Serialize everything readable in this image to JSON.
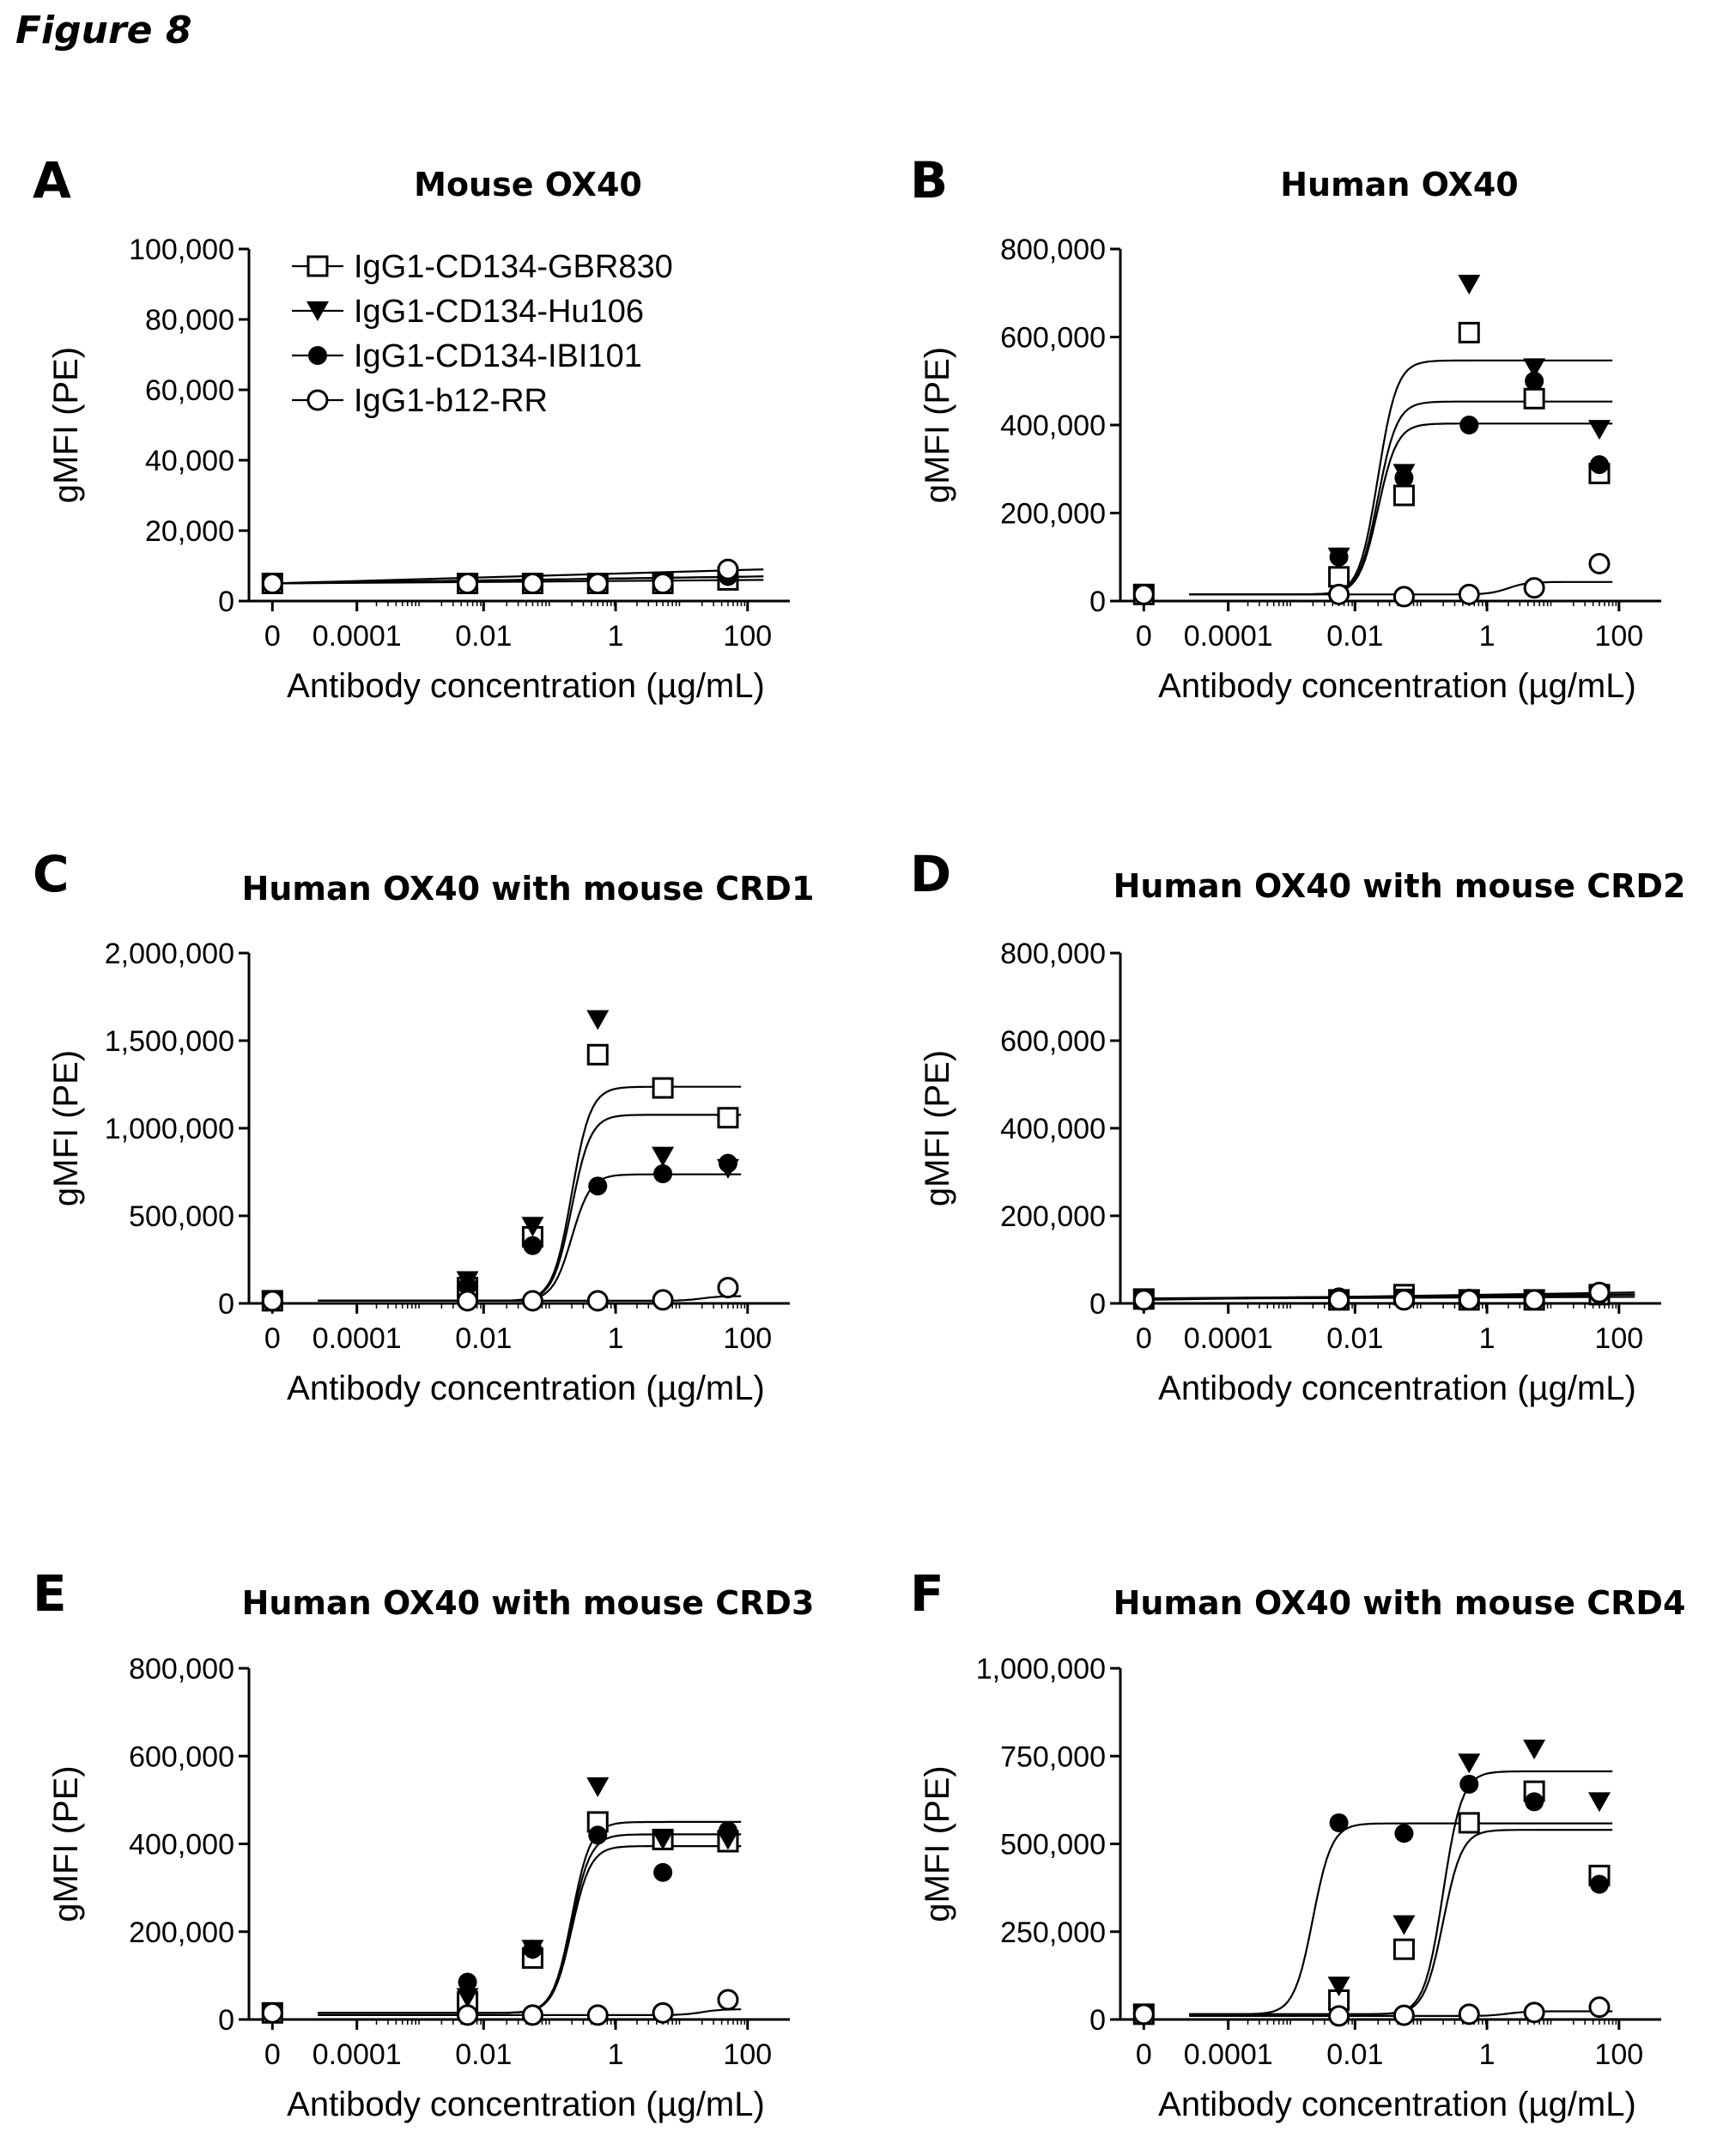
{
  "figure_label": "Figure 8",
  "legend": [
    {
      "name": "IgG1-CD134-GBR830",
      "marker": "open-square"
    },
    {
      "name": "IgG1-CD134-Hu106",
      "marker": "filled-triangle-down"
    },
    {
      "name": "IgG1-CD134-IBI101",
      "marker": "filled-circle"
    },
    {
      "name": "IgG1-b12-RR",
      "marker": "open-circle"
    }
  ],
  "colors": {
    "ink": "#000000",
    "background": "#ffffff"
  },
  "chart_data": [
    {
      "panel": "A",
      "type": "scatter",
      "title": "Mouse OX40",
      "xlabel": "Antibody concentration (µg/mL)",
      "ylabel": "gMFI (PE)",
      "xscale": "log",
      "xticks": [
        "0",
        "0.0001",
        "0.01",
        "1",
        "100"
      ],
      "yticks": [
        "0",
        "20,000",
        "40,000",
        "60,000",
        "80,000",
        "100,000"
      ],
      "ylim": [
        0,
        100000
      ],
      "x": [
        "0",
        0.005,
        0.05,
        0.5,
        5,
        50
      ],
      "series": [
        {
          "name": "IgG1-CD134-GBR830",
          "values": [
            5000,
            5000,
            5000,
            5000,
            5000,
            6000
          ],
          "fit": "flat"
        },
        {
          "name": "IgG1-CD134-Hu106",
          "values": [
            5000,
            5000,
            5000,
            5000,
            5000,
            7000
          ],
          "fit": "flat"
        },
        {
          "name": "IgG1-CD134-IBI101",
          "values": [
            5000,
            5000,
            5000,
            5000,
            5000,
            7000
          ],
          "fit": "flat"
        },
        {
          "name": "IgG1-b12-RR",
          "values": [
            5000,
            5000,
            5000,
            5000,
            5000,
            9000
          ],
          "fit": "flat"
        }
      ]
    },
    {
      "panel": "B",
      "type": "scatter",
      "title": "Human OX40",
      "xlabel": "Antibody concentration (µg/mL)",
      "ylabel": "gMFI (PE)",
      "xscale": "log",
      "xticks": [
        "0",
        "0.0001",
        "0.01",
        "1",
        "100"
      ],
      "yticks": [
        "0",
        "200,000",
        "400,000",
        "600,000",
        "800,000"
      ],
      "ylim": [
        0,
        800000
      ],
      "x": [
        "0",
        0.005,
        0.05,
        0.5,
        5,
        50
      ],
      "series": [
        {
          "name": "IgG1-CD134-GBR830",
          "values": [
            15000,
            55000,
            240000,
            610000,
            460000,
            290000
          ]
        },
        {
          "name": "IgG1-CD134-Hu106",
          "values": [
            15000,
            100000,
            290000,
            720000,
            530000,
            390000
          ]
        },
        {
          "name": "IgG1-CD134-IBI101",
          "values": [
            15000,
            100000,
            280000,
            400000,
            500000,
            310000
          ]
        },
        {
          "name": "IgG1-b12-RR",
          "values": [
            15000,
            15000,
            10000,
            15000,
            30000,
            85000
          ]
        }
      ]
    },
    {
      "panel": "C",
      "type": "scatter",
      "title": "Human OX40 with mouse CRD1",
      "xlabel": "Antibody concentration (µg/mL)",
      "ylabel": "gMFI (PE)",
      "xscale": "log",
      "xticks": [
        "0",
        "0.0001",
        "0.01",
        "1",
        "100"
      ],
      "yticks": [
        "0",
        "500,000",
        "1,000,000",
        "1,500,000",
        "2,000,000"
      ],
      "ylim": [
        0,
        2000000
      ],
      "x": [
        "0",
        0.005,
        0.05,
        0.5,
        5,
        50
      ],
      "series": [
        {
          "name": "IgG1-CD134-GBR830",
          "values": [
            15000,
            90000,
            380000,
            1420000,
            1230000,
            1060000
          ]
        },
        {
          "name": "IgG1-CD134-Hu106",
          "values": [
            15000,
            130000,
            440000,
            1620000,
            840000,
            770000
          ]
        },
        {
          "name": "IgG1-CD134-IBI101",
          "values": [
            15000,
            100000,
            330000,
            670000,
            740000,
            800000
          ]
        },
        {
          "name": "IgG1-b12-RR",
          "values": [
            15000,
            15000,
            15000,
            15000,
            20000,
            90000
          ]
        }
      ]
    },
    {
      "panel": "D",
      "type": "scatter",
      "title": "Human OX40 with mouse CRD2",
      "xlabel": "Antibody concentration (µg/mL)",
      "ylabel": "gMFI (PE)",
      "xscale": "log",
      "xticks": [
        "0",
        "0.0001",
        "0.01",
        "1",
        "100"
      ],
      "yticks": [
        "0",
        "200,000",
        "400,000",
        "600,000",
        "800,000"
      ],
      "ylim": [
        0,
        800000
      ],
      "x": [
        "0",
        0.005,
        0.05,
        0.5,
        5,
        50
      ],
      "series": [
        {
          "name": "IgG1-CD134-GBR830",
          "values": [
            10000,
            8000,
            20000,
            8000,
            8000,
            20000
          ],
          "fit": "flat"
        },
        {
          "name": "IgG1-CD134-Hu106",
          "values": [
            10000,
            10000,
            12000,
            10000,
            10000,
            15000
          ],
          "fit": "flat"
        },
        {
          "name": "IgG1-CD134-IBI101",
          "values": [
            10000,
            15000,
            10000,
            12000,
            10000,
            20000
          ],
          "fit": "flat"
        },
        {
          "name": "IgG1-b12-RR",
          "values": [
            8000,
            8000,
            8000,
            8000,
            8000,
            25000
          ],
          "fit": "flat"
        }
      ]
    },
    {
      "panel": "E",
      "type": "scatter",
      "title": "Human OX40 with mouse CRD3",
      "xlabel": "Antibody concentration (µg/mL)",
      "ylabel": "gMFI (PE)",
      "xscale": "log",
      "xticks": [
        "0",
        "0.0001",
        "0.01",
        "1",
        "100"
      ],
      "yticks": [
        "0",
        "200,000",
        "400,000",
        "600,000",
        "800,000"
      ],
      "ylim": [
        0,
        800000
      ],
      "x": [
        "0",
        0.005,
        0.05,
        0.5,
        5,
        50
      ],
      "series": [
        {
          "name": "IgG1-CD134-GBR830",
          "values": [
            15000,
            40000,
            140000,
            450000,
            410000,
            405000
          ]
        },
        {
          "name": "IgG1-CD134-Hu106",
          "values": [
            15000,
            50000,
            160000,
            530000,
            410000,
            410000
          ]
        },
        {
          "name": "IgG1-CD134-IBI101",
          "values": [
            15000,
            85000,
            160000,
            420000,
            335000,
            430000
          ]
        },
        {
          "name": "IgG1-b12-RR",
          "values": [
            15000,
            10000,
            10000,
            10000,
            15000,
            45000
          ]
        }
      ]
    },
    {
      "panel": "F",
      "type": "scatter",
      "title": "Human OX40 with mouse CRD4",
      "xlabel": "Antibody concentration (µg/mL)",
      "ylabel": "gMFI (PE)",
      "xscale": "log",
      "xticks": [
        "0",
        "0.0001",
        "0.01",
        "1",
        "100"
      ],
      "yticks": [
        "0",
        "250,000",
        "500,000",
        "750,000",
        "1,000,000"
      ],
      "ylim": [
        0,
        1000000
      ],
      "x": [
        "0",
        0.005,
        0.05,
        0.5,
        5,
        50
      ],
      "series": [
        {
          "name": "IgG1-CD134-GBR830",
          "values": [
            15000,
            55000,
            200000,
            560000,
            650000,
            410000
          ]
        },
        {
          "name": "IgG1-CD134-Hu106",
          "values": [
            15000,
            95000,
            270000,
            730000,
            770000,
            620000
          ]
        },
        {
          "name": "IgG1-CD134-IBI101",
          "values": [
            15000,
            560000,
            530000,
            670000,
            620000,
            385000
          ]
        },
        {
          "name": "IgG1-b12-RR",
          "values": [
            15000,
            10000,
            12000,
            15000,
            20000,
            35000
          ]
        }
      ]
    }
  ]
}
